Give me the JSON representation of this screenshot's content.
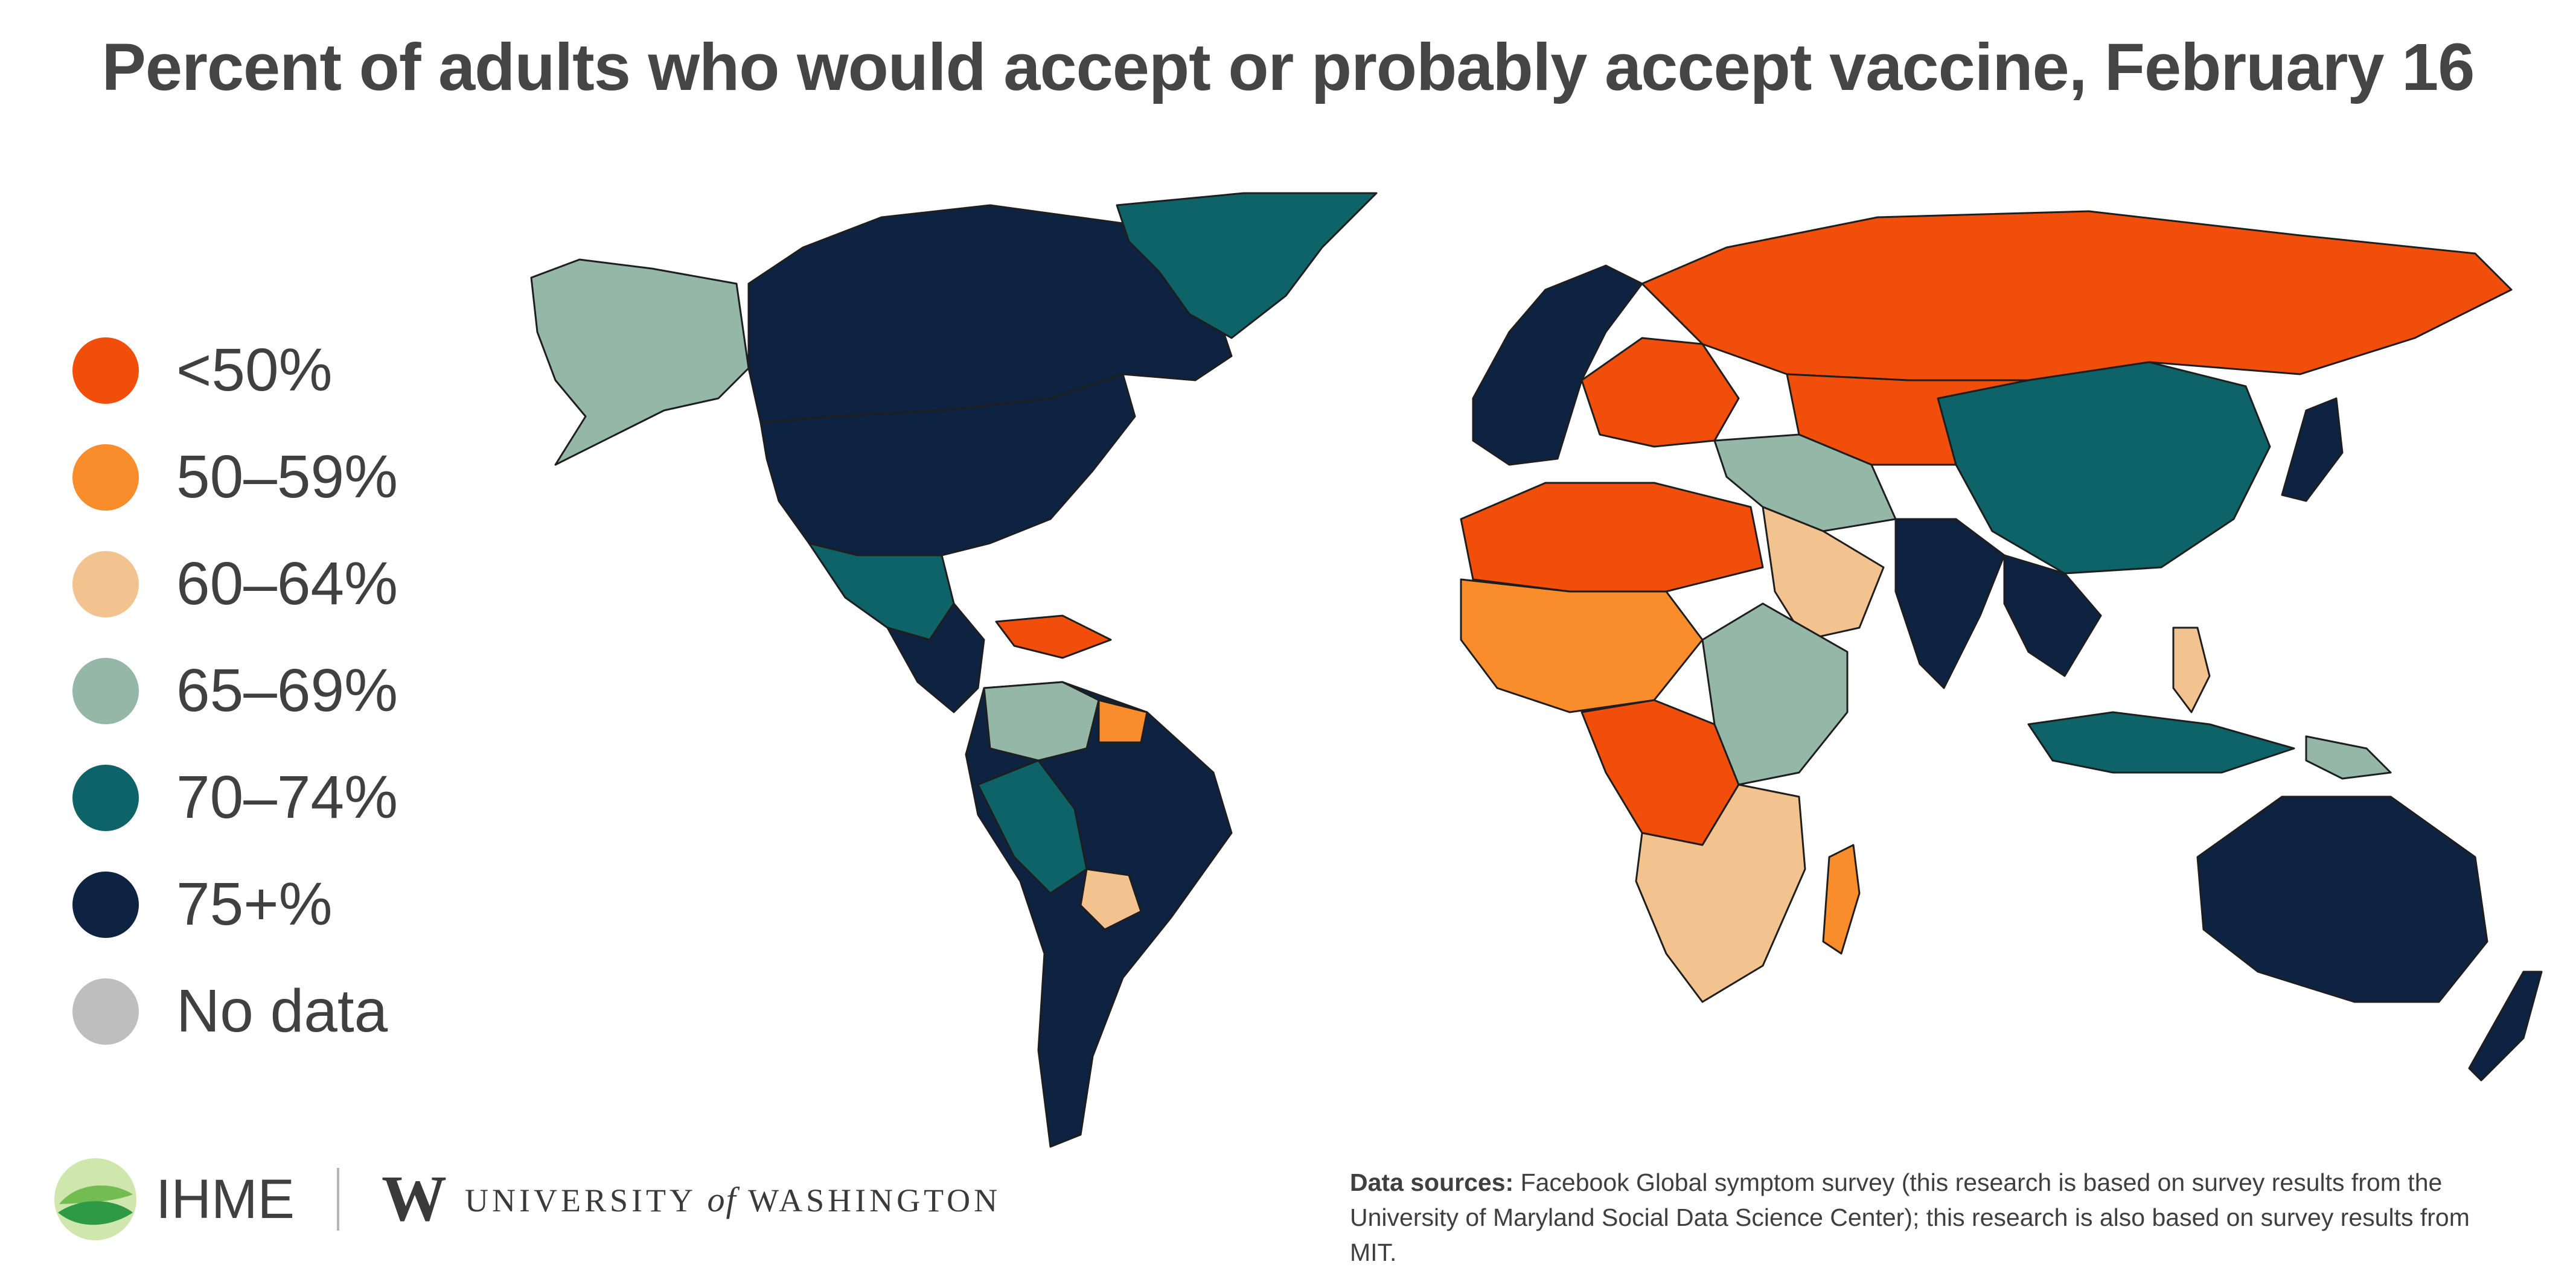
{
  "title": "Percent of adults who would accept or probably accept vaccine, February 16",
  "legend": {
    "items": [
      {
        "label": "<50%",
        "color": "#f24e0b"
      },
      {
        "label": "50–59%",
        "color": "#f98c2b"
      },
      {
        "label": "60–64%",
        "color": "#f2c28f"
      },
      {
        "label": "65–69%",
        "color": "#94b7a8"
      },
      {
        "label": "70–74%",
        "color": "#0d6367"
      },
      {
        "label": "75+%",
        "color": "#0e2242"
      },
      {
        "label": "No data",
        "color": "#bebebe"
      }
    ]
  },
  "regions": [
    {
      "name": "alaska",
      "color": "#94b7a8"
    },
    {
      "name": "canada",
      "color": "#0e2242"
    },
    {
      "name": "greenland",
      "color": "#0d6367"
    },
    {
      "name": "usa",
      "color": "#0e2242"
    },
    {
      "name": "mexico",
      "color": "#0d6367"
    },
    {
      "name": "central-america",
      "color": "#0e2242"
    },
    {
      "name": "caribbean",
      "color": "#f24e0b"
    },
    {
      "name": "south-america",
      "color": "#0e2242"
    },
    {
      "name": "colombia-venezuela",
      "color": "#94b7a8"
    },
    {
      "name": "peru-bolivia",
      "color": "#0d6367"
    },
    {
      "name": "paraguay",
      "color": "#f2c28f"
    },
    {
      "name": "guyana",
      "color": "#f98c2b"
    },
    {
      "name": "western-europe",
      "color": "#0e2242"
    },
    {
      "name": "eastern-europe",
      "color": "#f24e0b"
    },
    {
      "name": "russia",
      "color": "#f24e0b"
    },
    {
      "name": "china",
      "color": "#0d6367"
    },
    {
      "name": "central-asia",
      "color": "#f24e0b"
    },
    {
      "name": "middle-east",
      "color": "#94b7a8"
    },
    {
      "name": "arabia",
      "color": "#f2c28f"
    },
    {
      "name": "north-africa",
      "color": "#f24e0b"
    },
    {
      "name": "sahel",
      "color": "#f98c2b"
    },
    {
      "name": "central-africa",
      "color": "#f24e0b"
    },
    {
      "name": "east-africa",
      "color": "#94b7a8"
    },
    {
      "name": "southern-africa",
      "color": "#f2c28f"
    },
    {
      "name": "madagascar",
      "color": "#f98c2b"
    },
    {
      "name": "india",
      "color": "#0e2242"
    },
    {
      "name": "southeast-asia",
      "color": "#0e2242"
    },
    {
      "name": "indonesia",
      "color": "#0d6367"
    },
    {
      "name": "philippines",
      "color": "#f2c28f"
    },
    {
      "name": "japan",
      "color": "#0e2242"
    },
    {
      "name": "australia",
      "color": "#0e2242"
    },
    {
      "name": "new-zealand",
      "color": "#0e2242"
    },
    {
      "name": "papua-new-guinea",
      "color": "#94b7a8"
    }
  ],
  "logos": {
    "ihme": "IHME",
    "uw_mark": "W",
    "uw_pre": "UNIVERSITY ",
    "uw_of": "of",
    "uw_post": " WASHINGTON"
  },
  "sources": {
    "label": "Data sources:",
    "text": " Facebook Global symptom survey (this research is based on survey results from the University of Maryland Social Data Science Center); this research is also based on survey results from MIT."
  }
}
